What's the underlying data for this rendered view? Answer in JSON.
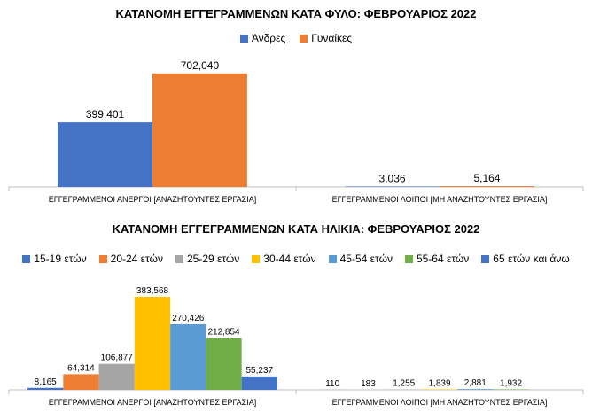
{
  "chart_data": [
    {
      "type": "bar",
      "title": "ΚΑΤΑΝΟΜΗ ΕΓΓΕΓΡΑΜΜΕΝΩΝ ΚΑΤΑ ΦΥΛΟ: ΦΕΒΡΟΥΑΡΙΟΣ 2022",
      "categories": [
        "ΕΓΓΕΓΡΑΜΜΕΝΟΙ ΑΝΕΡΓΟΙ [ΑΝΑΖΗΤΟΥΝΤΕΣ ΕΡΓΑΣΙΑ]",
        "ΕΓΓΕΓΡΑΜΜΕΝΟΙ ΛΟΙΠΟΙ [ΜΗ ΑΝΑΖΗΤΟΥΝΤΕΣ ΕΡΓΑΣΙΑ]"
      ],
      "series": [
        {
          "name": "Άνδρες",
          "color": "#4472C4",
          "values": [
            399401,
            3036
          ]
        },
        {
          "name": "Γυναίκες",
          "color": "#ED7D31",
          "values": [
            702040,
            5164
          ]
        }
      ],
      "value_labels": [
        [
          "399,401",
          "3,036"
        ],
        [
          "702,040",
          "5,164"
        ]
      ],
      "ylim": [
        0,
        800000
      ],
      "legend_position": "top",
      "grid": false
    },
    {
      "type": "bar",
      "title": "ΚΑΤΑΝΟΜΗ ΕΓΓΕΓΡΑΜΜΕΝΩΝ ΚΑΤΑ ΗΛΙΚΙΑ: ΦΕΒΡΟΥΑΡΙΟΣ  2022",
      "categories": [
        "ΕΓΓΕΓΡΑΜΜΕΝΟΙ ΑΝΕΡΓΟΙ [ΑΝΑΖΗΤΟΥΝΤΕΣ ΕΡΓΑΣΙΑ]",
        "ΕΓΓΕΓΡΑΜΜΕΝΟΙ ΛΟΙΠΟΙ [ΜΗ ΑΝΑΖΗΤΟΥΝΤΕΣ ΕΡΓΑΣΙΑ]"
      ],
      "series": [
        {
          "name": "15-19 ετών",
          "color": "#4472C4",
          "values": [
            8165,
            110
          ]
        },
        {
          "name": "20-24 ετών",
          "color": "#ED7D31",
          "values": [
            64314,
            183
          ]
        },
        {
          "name": "25-29 ετών",
          "color": "#A5A5A5",
          "values": [
            106877,
            1255
          ]
        },
        {
          "name": "30-44 ετών",
          "color": "#FFC000",
          "values": [
            383568,
            1839
          ]
        },
        {
          "name": "45-54 ετών",
          "color": "#5B9BD5",
          "values": [
            270426,
            2881
          ]
        },
        {
          "name": "55-64 ετών",
          "color": "#70AD47",
          "values": [
            212854,
            1932
          ]
        },
        {
          "name": "65 ετών και άνω",
          "color": "#4472C4",
          "values": [
            55237,
            0
          ]
        }
      ],
      "value_labels": [
        [
          "8,165",
          "110"
        ],
        [
          "64,314",
          "183"
        ],
        [
          "106,877",
          "1,255"
        ],
        [
          "383,568",
          "1,839"
        ],
        [
          "270,426",
          "2,881"
        ],
        [
          "212,854",
          "1,932"
        ],
        [
          "55,237",
          ""
        ]
      ],
      "ylim": [
        0,
        420000
      ],
      "legend_position": "top",
      "grid": false
    }
  ]
}
